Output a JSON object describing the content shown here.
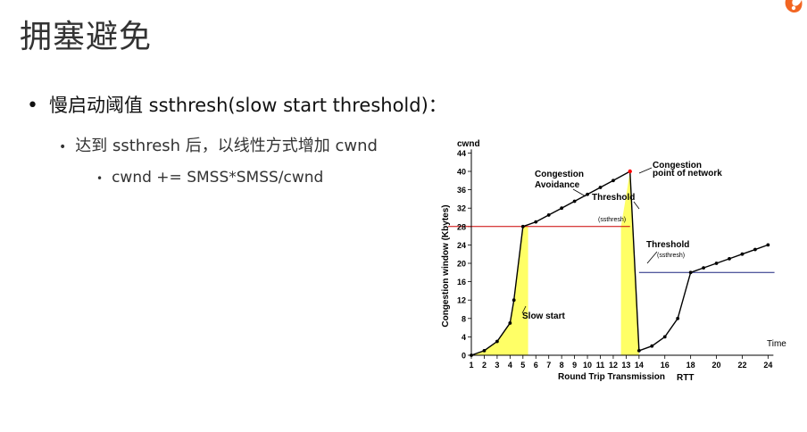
{
  "slide": {
    "title": "拥塞避免",
    "logo_icon": "orange-flame-logo",
    "bullet_1": "慢启动阈值 ssthresh(slow start threshold)：",
    "bullet_2": "达到 ssthresh 后，以线性方式增加 cwnd",
    "bullet_3": "cwnd += SMSS*SMSS/cwnd"
  },
  "chart_data": {
    "type": "line",
    "y_top_label": "cwnd",
    "ylabel": "Congestion window (Kbytes)",
    "xlabel": "Round Trip Transmission",
    "xlabel_unit": "RTT",
    "x_end_label": "Time",
    "xlim": [
      1,
      24
    ],
    "ylim": [
      0,
      44
    ],
    "x_ticks": [
      1,
      2,
      3,
      4,
      5,
      6,
      7,
      8,
      9,
      10,
      11,
      12,
      13,
      14,
      16,
      18,
      20,
      22,
      24
    ],
    "y_ticks": [
      0,
      4,
      8,
      12,
      16,
      20,
      24,
      28,
      32,
      36,
      40,
      44
    ],
    "series": [
      {
        "x": [
          1,
          2,
          3,
          4,
          4.3,
          5,
          6,
          7,
          8,
          9,
          10,
          11,
          12,
          13.3,
          14,
          15,
          16,
          17,
          18,
          19,
          20,
          21,
          22,
          23,
          24
        ],
        "y": [
          0,
          1,
          3,
          7,
          12,
          28,
          29,
          30.5,
          32,
          33.5,
          35,
          36.5,
          38,
          40,
          1,
          2,
          4,
          8,
          18,
          19,
          20,
          21,
          22,
          23,
          24
        ]
      }
    ],
    "thresholds": [
      {
        "label": "Threshold",
        "sub_label": "(ssthresh)",
        "value": 28,
        "x_from": 1,
        "x_to": 13.3
      },
      {
        "label": "Threshold",
        "sub_label": "(ssthresh)",
        "value": 18,
        "x_from": 14,
        "x_to": 24.5
      }
    ],
    "annotations": [
      {
        "line1": "Congestion",
        "line2": "Avoidance"
      },
      {
        "line1": "Congestion",
        "line2": "point of network"
      },
      {
        "line1": "Slow start"
      }
    ],
    "colors": {
      "line": "#000000",
      "fill": "#ffff66",
      "threshold_1": "#cc0000",
      "threshold_2": "#1a237e",
      "peak_point": "#ff0000"
    }
  }
}
